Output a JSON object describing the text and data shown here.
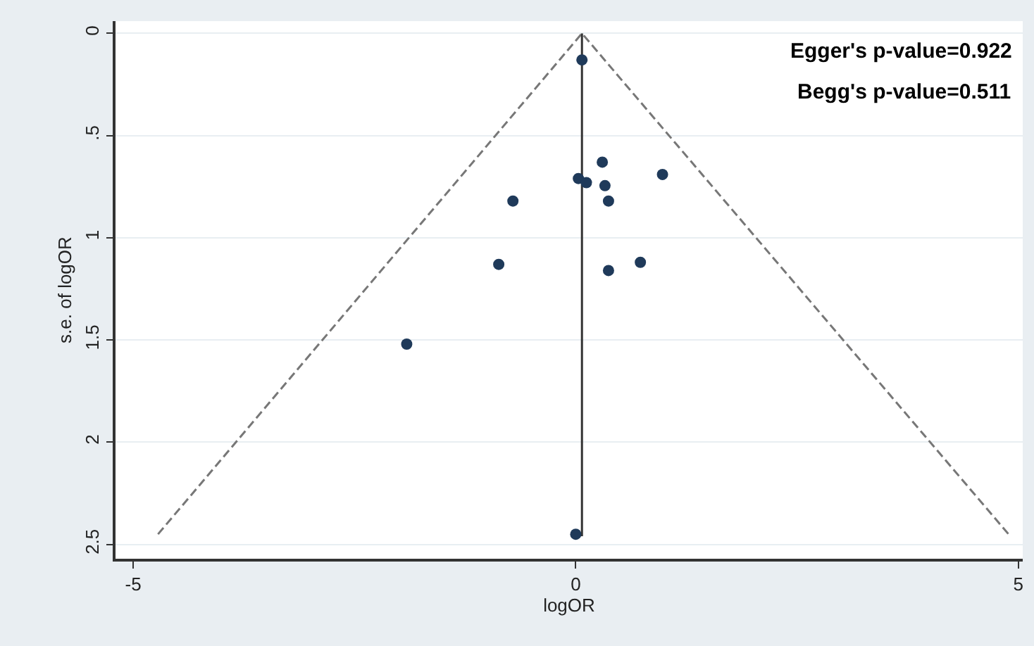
{
  "chart_data": {
    "type": "scatter",
    "xlabel": "logOR",
    "ylabel": "s.e. of logOR",
    "annotations": [
      "Egger's p-value=0.922",
      "Begg's p-value=0.511"
    ],
    "xlim": [
      -5.2,
      5.05
    ],
    "xticks": [
      -5,
      0,
      5
    ],
    "ylim": [
      2.57,
      -0.06
    ],
    "yticks": [
      0,
      {
        "value": 0.5,
        "label": ".5"
      },
      1,
      1.5,
      2,
      2.5
    ],
    "grid": "y",
    "series": [
      {
        "type": "line",
        "color": "#777777",
        "line_style": "dashed",
        "marker": "none",
        "x": [
          -4.72,
          0.07,
          4.89
        ],
        "values": [
          2.45,
          0,
          2.45
        ]
      },
      {
        "type": "line",
        "color": "#333333",
        "line_style": "solid",
        "marker": "none",
        "x": [
          0.07,
          0.07
        ],
        "values": [
          0,
          2.46
        ]
      },
      {
        "color": "#1f3a5a",
        "marker": "circle",
        "x": [
          0.3,
          0.98,
          0.03,
          0.12,
          0.33,
          0.37,
          -0.71,
          -0.87,
          0.37,
          0.73,
          -1.91,
          0.07,
          0.0
        ],
        "values": [
          0.63,
          0.69,
          0.71,
          0.73,
          0.745,
          0.82,
          0.82,
          1.13,
          1.16,
          1.12,
          1.52,
          0.13,
          2.45
        ]
      }
    ]
  }
}
